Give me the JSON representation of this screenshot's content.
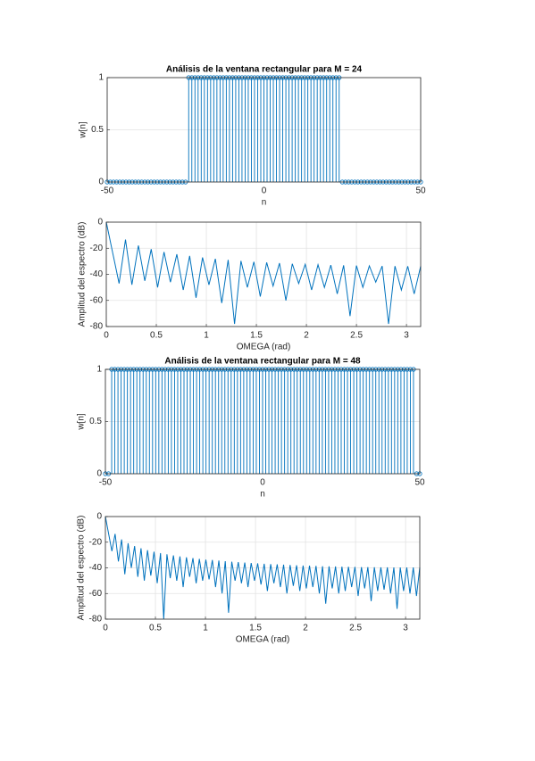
{
  "chart_data": [
    {
      "type": "stem",
      "title": "Análisis de la ventana rectangular para M = 24",
      "xlabel": "n",
      "ylabel": "w[n]",
      "color": "#0072bd",
      "grid": true,
      "xlim": [
        -50,
        50
      ],
      "xticks": [
        -50,
        0,
        50
      ],
      "ylim": [
        0,
        1
      ],
      "yticks": [
        0,
        0.5,
        1
      ],
      "x": [
        -50,
        -49,
        -48,
        -47,
        -46,
        -45,
        -44,
        -43,
        -42,
        -41,
        -40,
        -39,
        -38,
        -37,
        -36,
        -35,
        -34,
        -33,
        -32,
        -31,
        -30,
        -29,
        -28,
        -27,
        -26,
        -25,
        -24,
        -23,
        -22,
        -21,
        -20,
        -19,
        -18,
        -17,
        -16,
        -15,
        -14,
        -13,
        -12,
        -11,
        -10,
        -9,
        -8,
        -7,
        -6,
        -5,
        -4,
        -3,
        -2,
        -1,
        0,
        1,
        2,
        3,
        4,
        5,
        6,
        7,
        8,
        9,
        10,
        11,
        12,
        13,
        14,
        15,
        16,
        17,
        18,
        19,
        20,
        21,
        22,
        23,
        24,
        25,
        26,
        27,
        28,
        29,
        30,
        31,
        32,
        33,
        34,
        35,
        36,
        37,
        38,
        39,
        40,
        41,
        42,
        43,
        44,
        45,
        46,
        47,
        48,
        49,
        50
      ],
      "values": [
        0,
        0,
        0,
        0,
        0,
        0,
        0,
        0,
        0,
        0,
        0,
        0,
        0,
        0,
        0,
        0,
        0,
        0,
        0,
        0,
        0,
        0,
        0,
        0,
        0,
        0,
        1,
        1,
        1,
        1,
        1,
        1,
        1,
        1,
        1,
        1,
        1,
        1,
        1,
        1,
        1,
        1,
        1,
        1,
        1,
        1,
        1,
        1,
        1,
        1,
        1,
        1,
        1,
        1,
        1,
        1,
        1,
        1,
        1,
        1,
        1,
        1,
        1,
        1,
        1,
        1,
        1,
        1,
        1,
        1,
        1,
        1,
        1,
        1,
        1,
        0,
        0,
        0,
        0,
        0,
        0,
        0,
        0,
        0,
        0,
        0,
        0,
        0,
        0,
        0,
        0,
        0,
        0,
        0,
        0,
        0,
        0,
        0,
        0,
        0,
        0
      ]
    },
    {
      "type": "line",
      "xlabel": "OMEGA (rad)",
      "ylabel": "Amplitud del espectro (dB)",
      "color": "#0072bd",
      "grid": true,
      "xlim": [
        0,
        3.142
      ],
      "xticks": [
        0,
        0.5,
        1,
        1.5,
        2,
        2.5,
        3
      ],
      "ylim": [
        -80,
        0
      ],
      "yticks": [
        -80,
        -60,
        -40,
        -20,
        0
      ],
      "x": [
        0,
        0.128,
        0.192,
        0.256,
        0.321,
        0.385,
        0.449,
        0.513,
        0.577,
        0.641,
        0.705,
        0.769,
        0.833,
        0.897,
        0.962,
        1.026,
        1.09,
        1.154,
        1.218,
        1.282,
        1.346,
        1.41,
        1.475,
        1.539,
        1.603,
        1.667,
        1.731,
        1.795,
        1.859,
        1.923,
        1.988,
        2.052,
        2.116,
        2.18,
        2.244,
        2.308,
        2.372,
        2.436,
        2.5,
        2.564,
        2.629,
        2.693,
        2.757,
        2.821,
        2.885,
        2.949,
        3.013,
        3.077,
        3.142
      ],
      "values": [
        0,
        -47,
        -13.4,
        -48,
        -17.9,
        -45,
        -20.7,
        -50,
        -22.9,
        -46,
        -24.6,
        -52,
        -25.9,
        -58,
        -27.1,
        -48,
        -28.1,
        -62,
        -28.9,
        -78,
        -29.7,
        -50,
        -30.4,
        -57,
        -30.9,
        -49,
        -31.4,
        -60,
        -31.9,
        -47,
        -32.3,
        -52,
        -32.6,
        -50,
        -32.9,
        -55,
        -33.1,
        -72,
        -33.3,
        -50,
        -33.5,
        -46,
        -33.6,
        -78,
        -33.7,
        -52,
        -33.8,
        -55,
        -33.8
      ]
    },
    {
      "type": "stem",
      "title": "Análisis de la ventana rectangular para M = 48",
      "xlabel": "n",
      "ylabel": "w[n]",
      "color": "#0072bd",
      "grid": true,
      "xlim": [
        -50,
        50
      ],
      "xticks": [
        -50,
        0,
        50
      ],
      "ylim": [
        0,
        1
      ],
      "yticks": [
        0,
        0.5,
        1
      ],
      "x": [
        -50,
        -49,
        -48,
        -47,
        -46,
        -45,
        -44,
        -43,
        -42,
        -41,
        -40,
        -39,
        -38,
        -37,
        -36,
        -35,
        -34,
        -33,
        -32,
        -31,
        -30,
        -29,
        -28,
        -27,
        -26,
        -25,
        -24,
        -23,
        -22,
        -21,
        -20,
        -19,
        -18,
        -17,
        -16,
        -15,
        -14,
        -13,
        -12,
        -11,
        -10,
        -9,
        -8,
        -7,
        -6,
        -5,
        -4,
        -3,
        -2,
        -1,
        0,
        1,
        2,
        3,
        4,
        5,
        6,
        7,
        8,
        9,
        10,
        11,
        12,
        13,
        14,
        15,
        16,
        17,
        18,
        19,
        20,
        21,
        22,
        23,
        24,
        25,
        26,
        27,
        28,
        29,
        30,
        31,
        32,
        33,
        34,
        35,
        36,
        37,
        38,
        39,
        40,
        41,
        42,
        43,
        44,
        45,
        46,
        47,
        48,
        49,
        50
      ],
      "values": [
        0,
        0,
        1,
        1,
        1,
        1,
        1,
        1,
        1,
        1,
        1,
        1,
        1,
        1,
        1,
        1,
        1,
        1,
        1,
        1,
        1,
        1,
        1,
        1,
        1,
        1,
        1,
        1,
        1,
        1,
        1,
        1,
        1,
        1,
        1,
        1,
        1,
        1,
        1,
        1,
        1,
        1,
        1,
        1,
        1,
        1,
        1,
        1,
        1,
        1,
        1,
        1,
        1,
        1,
        1,
        1,
        1,
        1,
        1,
        1,
        1,
        1,
        1,
        1,
        1,
        1,
        1,
        1,
        1,
        1,
        1,
        1,
        1,
        1,
        1,
        1,
        1,
        1,
        1,
        1,
        1,
        1,
        1,
        1,
        1,
        1,
        1,
        1,
        1,
        1,
        1,
        1,
        1,
        1,
        1,
        1,
        1,
        1,
        1,
        0,
        0
      ]
    },
    {
      "type": "line",
      "xlabel": "OMEGA (rad)",
      "ylabel": "Amplitud del espectro (dB)",
      "color": "#0072bd",
      "grid": true,
      "xlim": [
        0,
        3.142
      ],
      "xticks": [
        0,
        0.5,
        1,
        1.5,
        2,
        2.5,
        3
      ],
      "ylim": [
        -80,
        0
      ],
      "yticks": [
        -80,
        -60,
        -40,
        -20,
        0
      ],
      "x": [
        0,
        0.065,
        0.097,
        0.13,
        0.162,
        0.194,
        0.227,
        0.259,
        0.292,
        0.324,
        0.356,
        0.389,
        0.421,
        0.454,
        0.486,
        0.518,
        0.551,
        0.583,
        0.615,
        0.648,
        0.68,
        0.713,
        0.745,
        0.777,
        0.81,
        0.842,
        0.875,
        0.907,
        0.939,
        0.972,
        1.004,
        1.036,
        1.069,
        1.101,
        1.134,
        1.166,
        1.198,
        1.231,
        1.263,
        1.296,
        1.328,
        1.36,
        1.393,
        1.425,
        1.457,
        1.49,
        1.522,
        1.555,
        1.587,
        1.619,
        1.652,
        1.684,
        1.717,
        1.749,
        1.781,
        1.814,
        1.846,
        1.878,
        1.911,
        1.943,
        1.976,
        2.008,
        2.04,
        2.073,
        2.105,
        2.138,
        2.17,
        2.202,
        2.235,
        2.267,
        2.3,
        2.332,
        2.364,
        2.397,
        2.429,
        2.461,
        2.494,
        2.526,
        2.559,
        2.591,
        2.623,
        2.656,
        2.688,
        2.721,
        2.753,
        2.785,
        2.818,
        2.85,
        2.883,
        2.915,
        2.947,
        2.98,
        3.012,
        3.044,
        3.077,
        3.109,
        3.142
      ],
      "values": [
        0,
        -27,
        -13.5,
        -35,
        -17.9,
        -45,
        -20.8,
        -40,
        -23.0,
        -47,
        -24.7,
        -50,
        -26.2,
        -46,
        -27.4,
        -52,
        -28.5,
        -80,
        -29.4,
        -48,
        -30.3,
        -50,
        -31.1,
        -55,
        -31.8,
        -47,
        -32.4,
        -52,
        -33.0,
        -50,
        -33.6,
        -49,
        -33.9,
        -55,
        -34.3,
        -60,
        -34.8,
        -75,
        -35.2,
        -50,
        -35.5,
        -52,
        -35.9,
        -55,
        -36.2,
        -50,
        -36.5,
        -53,
        -36.8,
        -58,
        -37.1,
        -52,
        -37.3,
        -55,
        -37.5,
        -60,
        -37.8,
        -54,
        -38.0,
        -58,
        -38.2,
        -56,
        -38.3,
        -55,
        -38.5,
        -60,
        -38.7,
        -68,
        -38.8,
        -56,
        -38.9,
        -60,
        -39.1,
        -58,
        -39.2,
        -55,
        -39.3,
        -62,
        -39.4,
        -56,
        -39.4,
        -66,
        -39.5,
        -58,
        -39.6,
        -57,
        -39.6,
        -60,
        -39.7,
        -72,
        -39.7,
        -58,
        -39.7,
        -60,
        -39.7,
        -62,
        -39.7
      ]
    }
  ]
}
